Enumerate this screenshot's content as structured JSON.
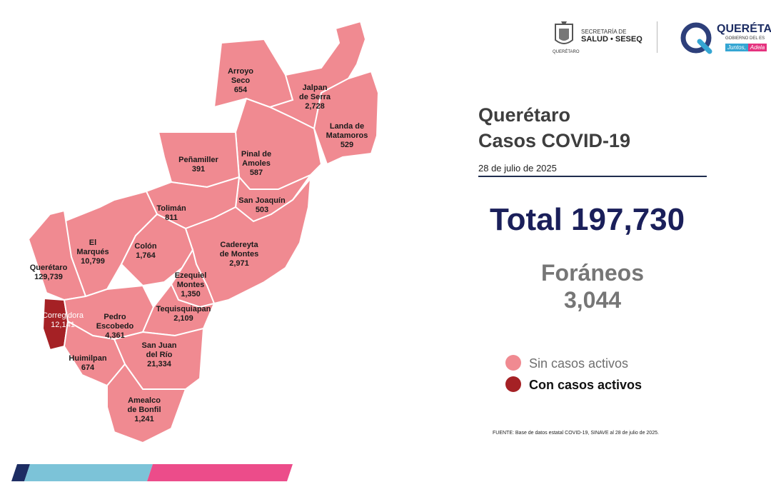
{
  "header": {
    "secretaria_line1": "SECRETARÍA DE",
    "secretaria_line2": "SALUD • SESEQ",
    "seal_caption": "QUERÉTARO",
    "brand": "QUERÉTA",
    "brand_sub": "GOBIERNO DEL ES",
    "tag1": "Juntos,",
    "tag2": "Adela"
  },
  "title_line1": "Querétaro",
  "title_line2": "Casos COVID-19",
  "date": "28 de julio de 2025",
  "total": "Total 197,730",
  "foraneos_label": "Foráneos",
  "foraneos_value": "3,044",
  "legend": {
    "inactive_label": "Sin casos activos",
    "active_label": "Con casos activos",
    "inactive_color": "#f08a91",
    "active_color": "#a52125"
  },
  "source": "FUENTE: Base de datos estatal  COVID-19,  SINAVE  al 28 de julio de 2025.",
  "municipalities": [
    {
      "name": "Arroyo\nSeco",
      "value": "654",
      "active": false
    },
    {
      "name": "Jalpan\nde Serra",
      "value": "2,728",
      "active": false
    },
    {
      "name": "Landa de\nMatamoros",
      "value": "529",
      "active": false
    },
    {
      "name": "Pinal de\nAmoles",
      "value": "587",
      "active": false
    },
    {
      "name": "Peñamiller",
      "value": "391",
      "active": false
    },
    {
      "name": "San Joaquín",
      "value": "503",
      "active": false
    },
    {
      "name": "Tolimán",
      "value": "811",
      "active": false
    },
    {
      "name": "El\nMarqués",
      "value": "10,799",
      "active": false
    },
    {
      "name": "Colón",
      "value": "1,764",
      "active": false
    },
    {
      "name": "Cadereyta\nde Montes",
      "value": "2,971",
      "active": false
    },
    {
      "name": "Querétaro",
      "value": "129,739",
      "active": false
    },
    {
      "name": "Ezequiel\nMontes",
      "value": "1,350",
      "active": false
    },
    {
      "name": "Corregidora",
      "value": "12,141",
      "active": true
    },
    {
      "name": "Pedro\nEscobedo",
      "value": "4,361",
      "active": false
    },
    {
      "name": "Tequisquiapan",
      "value": "2,109",
      "active": false
    },
    {
      "name": "San Juan\ndel Río",
      "value": "21,334",
      "active": false
    },
    {
      "name": "Huimilpan",
      "value": "674",
      "active": false
    },
    {
      "name": "Amealco\nde Bonfil",
      "value": "1,241",
      "active": false
    }
  ]
}
